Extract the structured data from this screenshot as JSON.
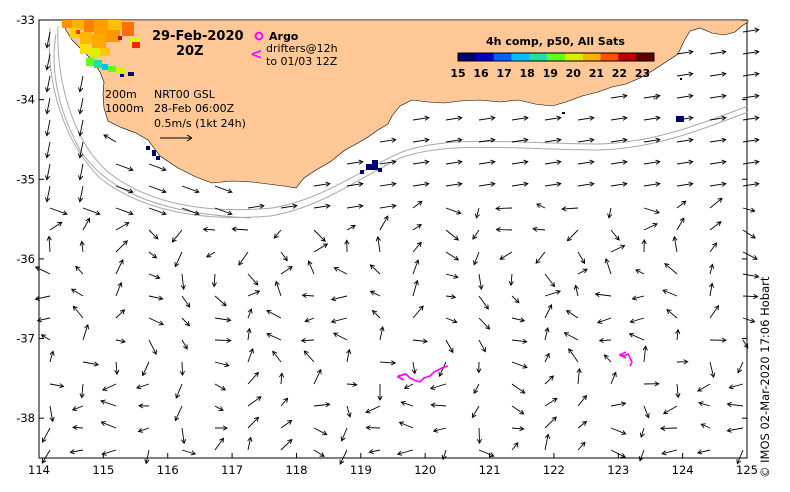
{
  "title": {
    "date": "29-Feb-2020",
    "time": "20Z"
  },
  "legend": {
    "argo_label": "Argo",
    "drifter_symbol": "<",
    "drifter_label_1": "drifters@12h",
    "drifter_label_2": "to 01/03 12Z",
    "isobath_1": "200m",
    "isobath_2": "1000m",
    "product": "NRT00 GSL",
    "product_date": "28-Feb 06:00Z",
    "scale_arrow_label": "0.5m/s (1kt 24h)"
  },
  "colorbar": {
    "title": "4h comp, p50, All Sats",
    "ticks": [
      "15",
      "16",
      "17",
      "18",
      "19",
      "20",
      "21",
      "22",
      "23"
    ],
    "min": 15,
    "max": 23.5,
    "colors": [
      "#00006f",
      "#0000c8",
      "#0060ff",
      "#00c0ff",
      "#20e0a0",
      "#60ff20",
      "#d8f000",
      "#ffb000",
      "#ff5000",
      "#c00000",
      "#600000"
    ]
  },
  "axes": {
    "x_ticks": [
      "114",
      "115",
      "116",
      "117",
      "118",
      "119",
      "120",
      "121",
      "122",
      "123",
      "124",
      "125"
    ],
    "y_ticks": [
      "-33",
      "-34",
      "-35",
      "-36",
      "-37",
      "-38"
    ],
    "lon_range": [
      114,
      125
    ],
    "lat_range": [
      -38.5,
      -33
    ]
  },
  "credit": "© IMOS 02-Mar-2020 17:06 Hobart",
  "colors": {
    "land": "#ffc896",
    "isobath": "#a8a8a8",
    "drifter": "#ff00ff",
    "cold_patch": "#00006f"
  }
}
